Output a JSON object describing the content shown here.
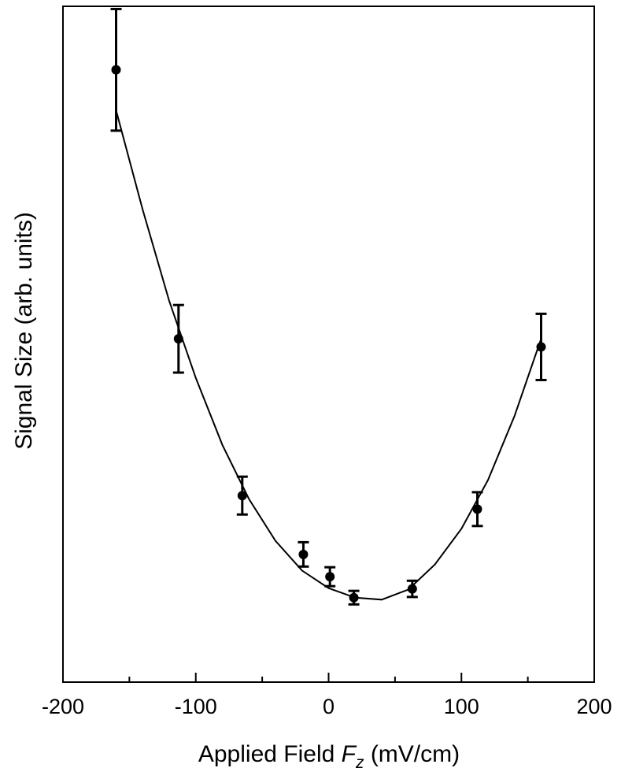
{
  "chart_data": {
    "type": "scatter",
    "title": "",
    "xlabel": "Applied Field",
    "xlabel_symbol": "F",
    "xlabel_subscript": "z",
    "xlabel_units": "(mV/cm)",
    "ylabel": "Signal Size (arb. units)",
    "xlim": [
      -200,
      200
    ],
    "ylim": [
      0,
      100
    ],
    "x_major_ticks": [
      -200,
      -100,
      0,
      100,
      200
    ],
    "x_tick_labels": [
      "-200",
      "-100",
      "0",
      "100",
      "200"
    ],
    "x_minor_ticks": [
      -150,
      -50,
      50,
      150
    ],
    "y_tick_labels": [],
    "grid": false,
    "legend": "none",
    "series": [
      {
        "x": [
          -160,
          -113,
          -65,
          -19,
          1,
          19,
          63,
          112,
          160
        ],
        "y": [
          90.6,
          50.8,
          27.6,
          18.9,
          15.6,
          12.5,
          13.8,
          25.6,
          49.6
        ],
        "yerr": [
          9.0,
          5.0,
          2.8,
          1.8,
          1.4,
          1.0,
          1.2,
          2.5,
          4.9
        ],
        "color": "#000000"
      }
    ],
    "fit": {
      "type": "quadratic",
      "x": [
        -160,
        -140,
        -120,
        -100,
        -80,
        -60,
        -40,
        -20,
        0,
        20,
        40,
        60,
        80,
        100,
        120,
        140,
        160
      ],
      "y": [
        84.6,
        69.9,
        56.4,
        45.0,
        35.1,
        27.1,
        20.9,
        16.5,
        13.9,
        12.5,
        12.2,
        13.7,
        17.4,
        22.7,
        29.9,
        39.4,
        50.8
      ]
    }
  }
}
